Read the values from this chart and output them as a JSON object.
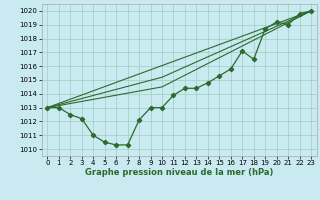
{
  "title": "Graphe pression niveau de la mer (hPa)",
  "background_color": "#c8eaf0",
  "grid_color": "#9ecfbb",
  "line_color": "#2d6a2d",
  "xlim": [
    -0.5,
    23.5
  ],
  "ylim": [
    1009.5,
    1020.5
  ],
  "yticks": [
    1010,
    1011,
    1012,
    1013,
    1014,
    1015,
    1016,
    1017,
    1018,
    1019,
    1020
  ],
  "xticks": [
    0,
    1,
    2,
    3,
    4,
    5,
    6,
    7,
    8,
    9,
    10,
    11,
    12,
    13,
    14,
    15,
    16,
    17,
    18,
    19,
    20,
    21,
    22,
    23
  ],
  "main_series": {
    "x": [
      0,
      1,
      2,
      3,
      4,
      5,
      6,
      7,
      8,
      9,
      10,
      11,
      12,
      13,
      14,
      15,
      16,
      17,
      18,
      19,
      20,
      21,
      22,
      23
    ],
    "y": [
      1013.0,
      1013.0,
      1012.5,
      1012.2,
      1011.0,
      1010.5,
      1010.3,
      1010.3,
      1012.1,
      1013.0,
      1013.0,
      1013.9,
      1014.4,
      1014.4,
      1014.8,
      1015.3,
      1015.8,
      1017.1,
      1016.5,
      1018.7,
      1019.2,
      1019.0,
      1019.8,
      1020.0
    ]
  },
  "ref_lines": [
    {
      "x": [
        0,
        23
      ],
      "y": [
        1013.0,
        1020.0
      ]
    },
    {
      "x": [
        0,
        10,
        23
      ],
      "y": [
        1013.0,
        1014.5,
        1020.0
      ]
    },
    {
      "x": [
        0,
        10,
        23
      ],
      "y": [
        1013.0,
        1015.2,
        1020.0
      ]
    }
  ],
  "ylabel_fontsize": 5.2,
  "xlabel_fontsize": 6.0,
  "tick_fontsize": 5.0
}
